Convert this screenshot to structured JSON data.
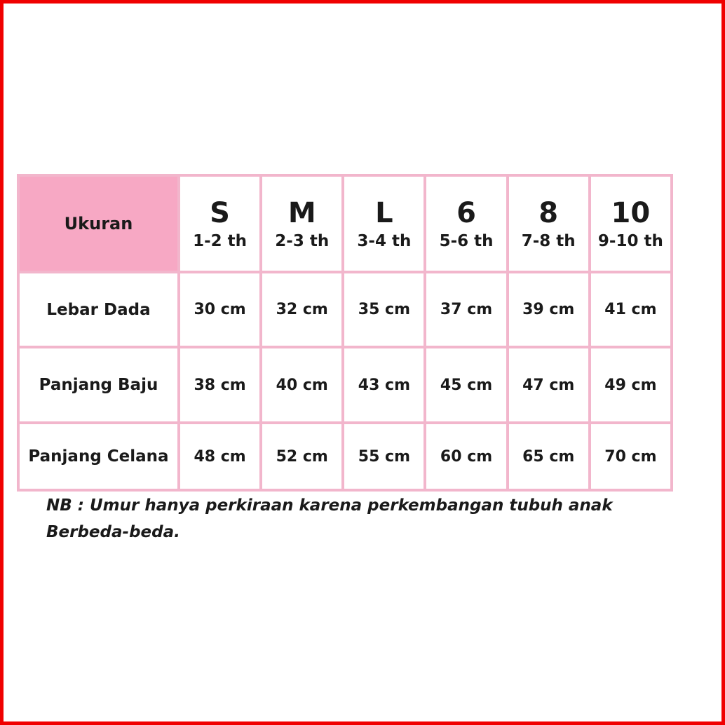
{
  "table": {
    "corner": "Ukuran",
    "sizes": [
      {
        "size": "S",
        "age": "1-2 th"
      },
      {
        "size": "M",
        "age": "2-3 th"
      },
      {
        "size": "L",
        "age": "3-4 th"
      },
      {
        "size": "6",
        "age": "5-6 th"
      },
      {
        "size": "8",
        "age": "7-8 th"
      },
      {
        "size": "10",
        "age": "9-10 th"
      }
    ],
    "rows": [
      {
        "label": "Lebar Dada",
        "values": [
          "30 cm",
          "32 cm",
          "35 cm",
          "37 cm",
          "39 cm",
          "41 cm"
        ]
      },
      {
        "label": "Panjang Baju",
        "values": [
          "38 cm",
          "40 cm",
          "43 cm",
          "45 cm",
          "47 cm",
          "49 cm"
        ]
      },
      {
        "label": "Panjang Celana",
        "values": [
          "48 cm",
          "52 cm",
          "55 cm",
          "60 cm",
          "65 cm",
          "70 cm"
        ]
      }
    ]
  },
  "note": {
    "line1": "NB : Umur hanya perkiraan karena perkembangan tubuh anak",
    "line2": "Berbeda-beda."
  },
  "colors": {
    "header_pink": "#f7a8c4",
    "border_pink": "#f2b6cc",
    "frame_red": "#f00000"
  }
}
